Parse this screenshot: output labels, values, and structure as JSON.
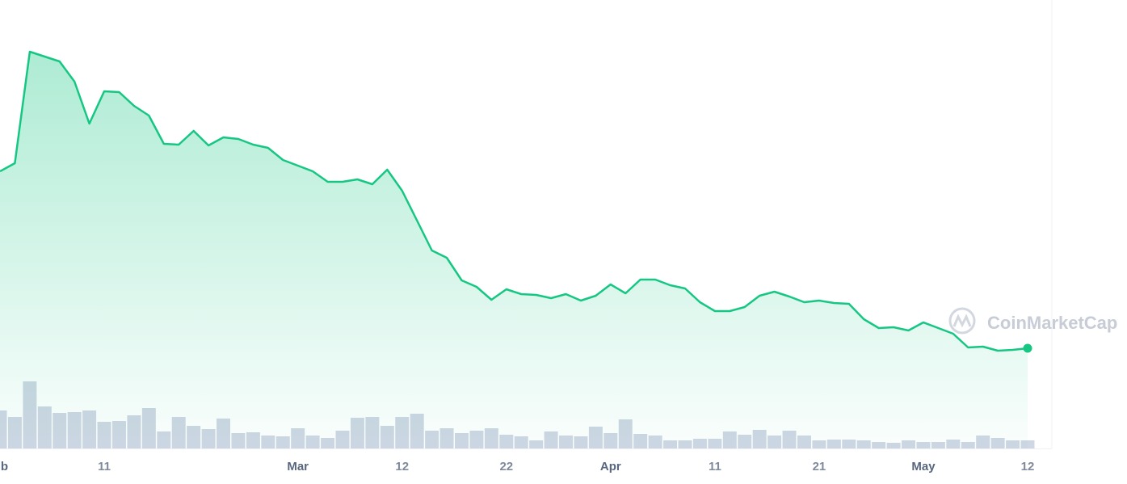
{
  "chart_data": {
    "type": "line",
    "watermark": "CoinMarketCap",
    "categories": [
      "b",
      null,
      null,
      null,
      null,
      null,
      null,
      "11",
      null,
      null,
      null,
      null,
      null,
      null,
      null,
      null,
      null,
      null,
      null,
      null,
      "Mar",
      null,
      null,
      null,
      null,
      null,
      null,
      "12",
      null,
      null,
      null,
      null,
      null,
      null,
      "22",
      null,
      null,
      null,
      null,
      null,
      null,
      "Apr",
      null,
      null,
      null,
      null,
      null,
      null,
      "11",
      null,
      null,
      null,
      null,
      null,
      null,
      "21",
      null,
      null,
      null,
      null,
      null,
      null,
      "May",
      null,
      null,
      null,
      null,
      null,
      null,
      "12"
    ],
    "month_labels": [
      "b",
      "Mar",
      "Apr",
      "May"
    ],
    "series": [
      {
        "color": "#16c784",
        "values": [
          343,
          353,
          491,
          485,
          479,
          454,
          402,
          442,
          441,
          424,
          412,
          377,
          376,
          393,
          375,
          385,
          383,
          376,
          372,
          357,
          350,
          343,
          330,
          330,
          333,
          327,
          345,
          319,
          282,
          245,
          236,
          208,
          200,
          184,
          197,
          191,
          190,
          186,
          191,
          183,
          189,
          203,
          192,
          209,
          209,
          202,
          198,
          181,
          170,
          170,
          175,
          189,
          194,
          188,
          181,
          183,
          180,
          179,
          160,
          149,
          150,
          146,
          156,
          149,
          142,
          125,
          126,
          121,
          122,
          124
        ]
      },
      {
        "color": "#cfd6e4",
        "axis": "y2",
        "values": [
          47,
          39,
          83,
          52,
          44,
          45,
          47,
          33,
          34,
          41,
          50,
          21,
          39,
          28,
          24,
          37,
          19,
          20,
          16,
          15,
          25,
          16,
          13,
          22,
          38,
          39,
          28,
          39,
          43,
          22,
          25,
          19,
          22,
          25,
          17,
          15,
          10,
          21,
          16,
          15,
          27,
          19,
          36,
          18,
          16,
          10,
          10,
          12,
          12,
          21,
          17,
          23,
          16,
          22,
          16,
          10,
          11,
          11,
          10,
          8,
          7,
          10,
          8,
          8,
          11,
          8,
          16,
          13,
          10,
          10
        ]
      }
    ],
    "ylim": [
      0,
      555
    ],
    "y2lim": [
      0,
      555
    ]
  }
}
